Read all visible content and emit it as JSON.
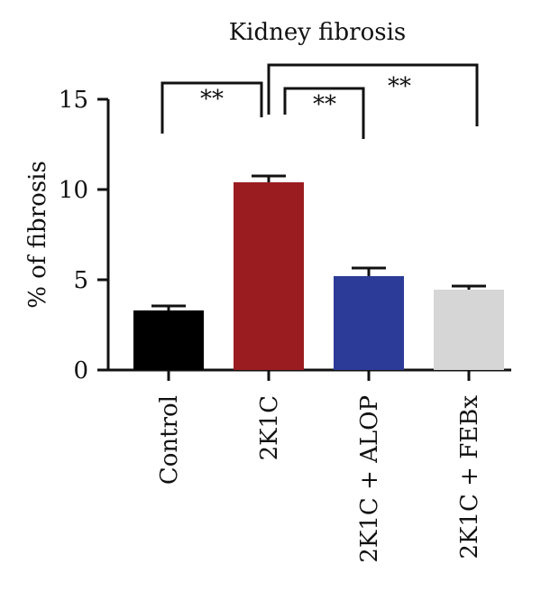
{
  "chart_data": {
    "type": "bar",
    "title": "Kidney fibrosis",
    "xlabel": "",
    "ylabel": "% of fibrosis",
    "categories": [
      "Control",
      "2K1C",
      "2K1C + ALOP",
      "2K1C + FEBx"
    ],
    "values": [
      3.3,
      10.4,
      5.2,
      4.45
    ],
    "errors": [
      0.25,
      0.35,
      0.45,
      0.2
    ],
    "colors": [
      "#000000",
      "#9b1c20",
      "#2b3b97",
      "#d6d6d6"
    ],
    "ylim": [
      0,
      15
    ],
    "yticks": [
      0,
      5,
      10,
      15
    ],
    "grid": false,
    "significance": [
      {
        "from": 0,
        "to": 1,
        "label": "**",
        "y": 13.0,
        "tick_end": 14.0
      },
      {
        "from": 1,
        "to": 2,
        "label": "**",
        "y": 12.0,
        "tick_end": 13.0
      },
      {
        "from": 1,
        "to": 3,
        "label": "**",
        "y": 15.3,
        "tick_end": 16.5
      }
    ]
  }
}
